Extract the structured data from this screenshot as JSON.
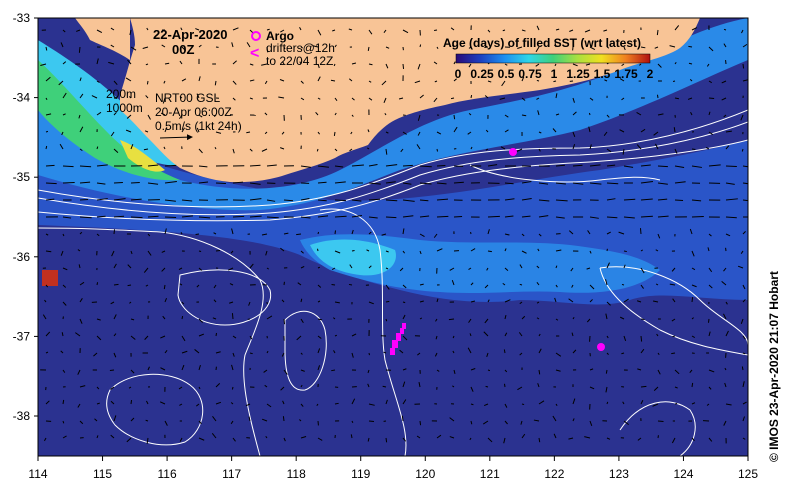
{
  "map": {
    "date_line1": "22-Apr-2020",
    "date_line2": "00Z",
    "argo_label": "Argo",
    "drifters_line1": "drifters@12h",
    "drifters_line2": "to 22/04 12Z",
    "depth_200": "200m",
    "depth_1000": "1000m",
    "product_name": "NRT00 GSL",
    "product_date": "20-Apr 06:00Z",
    "velocity_scale": "0.5m/s (1kt 24h)",
    "credit": "© IMOS 23-Apr-2020 21:07 Hobart"
  },
  "colorbar": {
    "title": "Age (days) of filled SST (wrt latest)",
    "ticks": [
      "0",
      "0.25",
      "0.5",
      "0.75",
      "1",
      "1.25",
      "1.5",
      "1.75",
      "2"
    ],
    "stops": [
      "#2a0a78",
      "#1c3fc0",
      "#1d8ff0",
      "#2ed6e8",
      "#3fd07a",
      "#a8e040",
      "#f0e020",
      "#f08020",
      "#b01010"
    ]
  },
  "axes": {
    "lon_labels": [
      "114",
      "115",
      "116",
      "117",
      "118",
      "119",
      "120",
      "121",
      "122",
      "123",
      "124",
      "125"
    ],
    "lat_labels": [
      "-33",
      "-34",
      "-35",
      "-36",
      "-37",
      "-38"
    ]
  },
  "colors": {
    "land": "#f8c496",
    "deep_ocean": "#2b3290",
    "mid_ocean": "#2a55c8",
    "shelf": "#2a8ae8",
    "argo": "#ff00ff"
  }
}
